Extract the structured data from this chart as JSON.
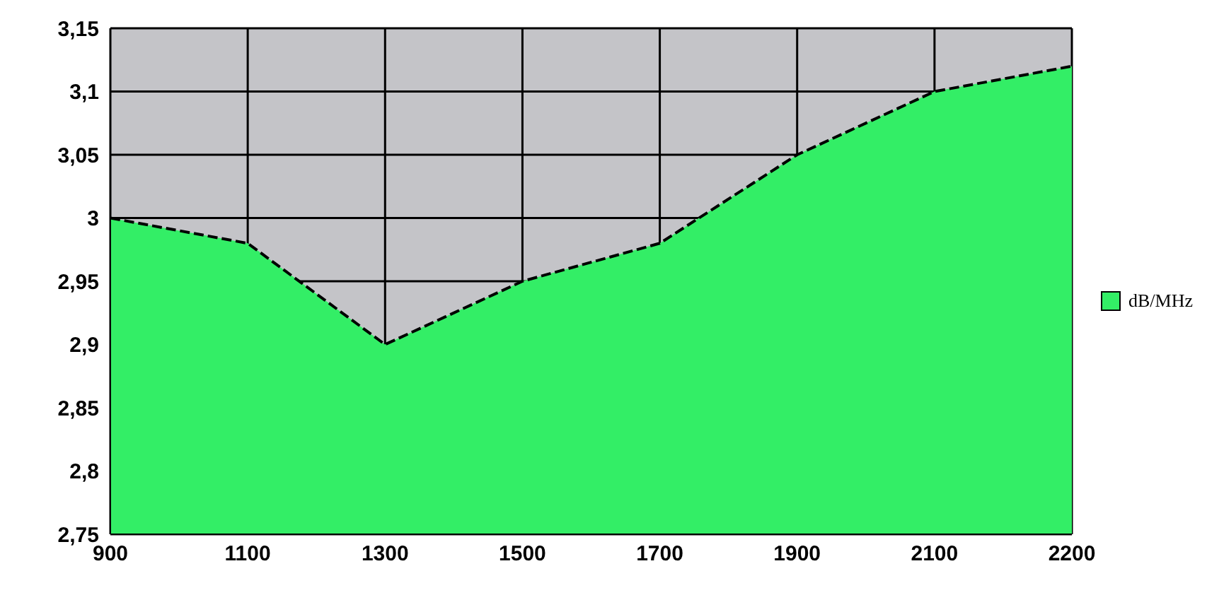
{
  "chart_data": {
    "type": "area",
    "categories": [
      "900",
      "1100",
      "1300",
      "1500",
      "1700",
      "1900",
      "2100",
      "2200"
    ],
    "series": [
      {
        "name": "dB/MHz",
        "color": "#33ee66",
        "values": [
          3.0,
          2.98,
          2.9,
          2.95,
          2.98,
          3.05,
          3.1,
          3.12
        ]
      }
    ],
    "ylim": [
      2.75,
      3.15
    ],
    "yticks": [
      {
        "value": 2.75,
        "label": "2,75"
      },
      {
        "value": 2.8,
        "label": "2,8"
      },
      {
        "value": 2.85,
        "label": "2,85"
      },
      {
        "value": 2.9,
        "label": "2,9"
      },
      {
        "value": 2.95,
        "label": "2,95"
      },
      {
        "value": 3,
        "label": "3"
      },
      {
        "value": 3.05,
        "label": "3,05"
      },
      {
        "value": 3.1,
        "label": "3,1"
      },
      {
        "value": 3.15,
        "label": "3,15"
      }
    ],
    "grid": true,
    "legend": "right",
    "line_style": "dashed"
  }
}
